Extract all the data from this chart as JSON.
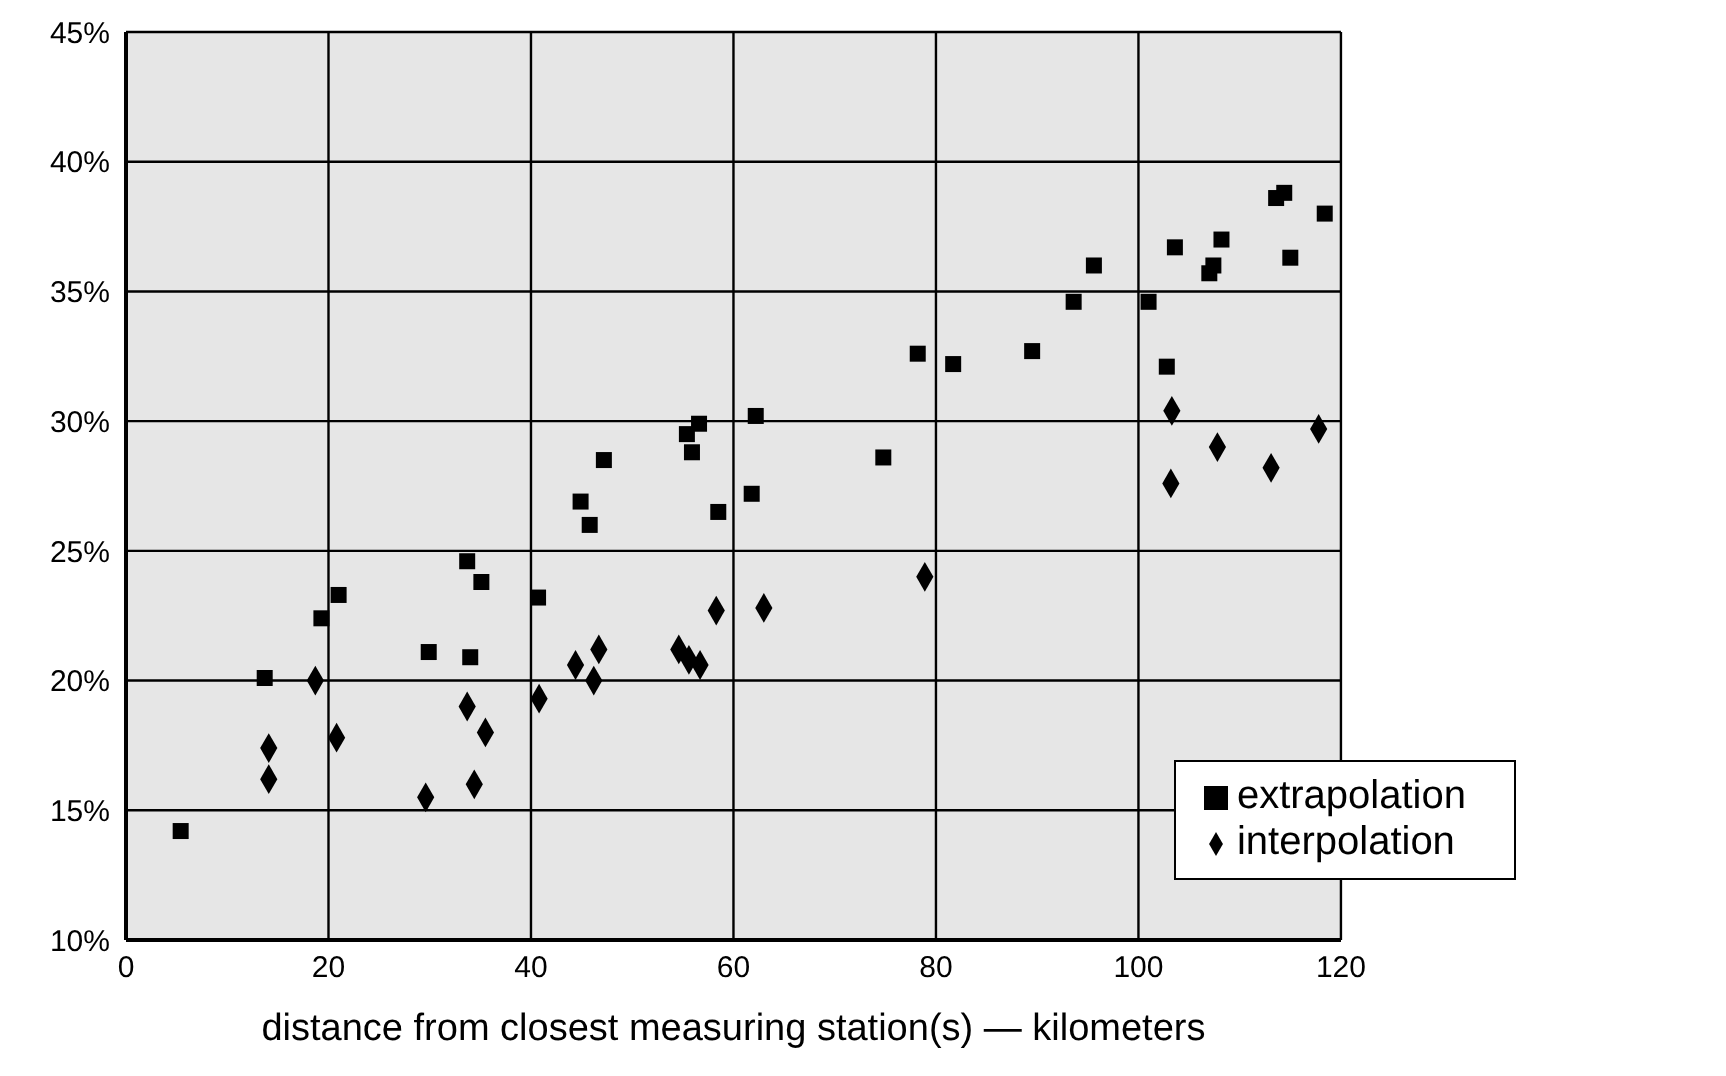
{
  "chart_data": {
    "type": "scatter",
    "xlabel": "distance from closest measuring station(s)  — kilometers",
    "xlim": [
      0,
      120
    ],
    "xticks": [
      0,
      20,
      40,
      60,
      80,
      100,
      120
    ],
    "ylim": [
      10,
      45
    ],
    "yticks": [
      {
        "value": 10,
        "label": "10%"
      },
      {
        "value": 15,
        "label": "15%"
      },
      {
        "value": 20,
        "label": "20%"
      },
      {
        "value": 25,
        "label": "25%"
      },
      {
        "value": 30,
        "label": "30%"
      },
      {
        "value": 35,
        "label": "35%"
      },
      {
        "value": 40,
        "label": "40%"
      },
      {
        "value": 45,
        "label": "45%"
      }
    ],
    "grid": true,
    "legend": "bottom right",
    "series": [
      {
        "name": "interpolation",
        "color": "#000000",
        "marker": "diamond",
        "x": [
          14.1,
          14.1,
          18.7,
          20.8,
          29.6,
          33.7,
          34.4,
          35.5,
          40.8,
          44.4,
          46.2,
          46.7,
          54.6,
          55.6,
          56.7,
          58.3,
          63.0,
          78.9,
          103.2,
          103.3,
          107.8,
          113.1,
          117.8
        ],
        "values": [
          17.4,
          16.2,
          20.0,
          17.8,
          15.5,
          19.0,
          16.0,
          18.0,
          19.3,
          20.6,
          20.0,
          21.2,
          21.2,
          20.8,
          20.6,
          22.7,
          22.8,
          24.0,
          27.6,
          30.4,
          29.0,
          28.2,
          29.7
        ]
      },
      {
        "name": "extrapolation",
        "color": "#000000",
        "marker": "square",
        "x": [
          5.4,
          13.7,
          19.3,
          21.0,
          29.9,
          33.7,
          34.0,
          35.1,
          40.7,
          44.9,
          45.8,
          47.2,
          55.4,
          55.9,
          56.6,
          58.5,
          61.8,
          62.2,
          74.8,
          78.2,
          81.7,
          89.5,
          93.6,
          95.6,
          101.0,
          102.8,
          103.6,
          107.0,
          107.4,
          108.2,
          113.6,
          114.4,
          115.0,
          118.4
        ],
        "values": [
          14.2,
          20.1,
          22.4,
          23.3,
          21.1,
          24.6,
          20.9,
          23.8,
          23.2,
          26.9,
          26.0,
          28.5,
          29.5,
          28.8,
          29.9,
          26.5,
          27.2,
          30.2,
          28.6,
          32.6,
          32.2,
          32.7,
          34.6,
          36.0,
          34.6,
          32.1,
          36.7,
          35.7,
          36.0,
          37.0,
          38.6,
          38.8,
          36.3,
          38.0
        ]
      }
    ]
  }
}
